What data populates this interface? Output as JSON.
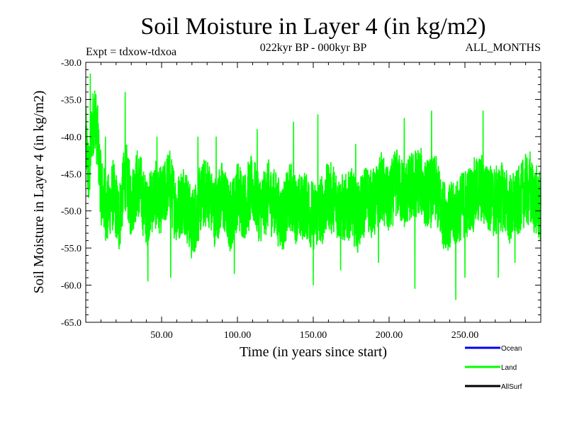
{
  "chart_data": {
    "type": "line",
    "title": "Soil Moisture in Layer 4 (in kg/m2)",
    "subtitle_left": "Expt = tdxow-tdxoa",
    "subtitle_center": "022kyr BP - 000kyr BP",
    "subtitle_right": "ALL_MONTHS",
    "xlabel": "Time (in years since start)",
    "ylabel": "Soil Moisture in Layer 4 (in kg/m2)",
    "xlim": [
      0,
      300
    ],
    "ylim": [
      -65,
      -30
    ],
    "x_ticks": [
      50,
      100,
      150,
      200,
      250
    ],
    "x_tick_labels": [
      "50.00",
      "100.00",
      "150.00",
      "200.00",
      "250.00"
    ],
    "y_ticks": [
      -30,
      -35,
      -40,
      -45,
      -50,
      -55,
      -60,
      -65
    ],
    "y_tick_labels": [
      "-30.0",
      "-35.0",
      "-40.0",
      "-45.0",
      "-50.0",
      "-55.0",
      "-60.0",
      "-65.0"
    ],
    "grid": false,
    "legend_position": "bottom-right",
    "legend": [
      {
        "name": "Ocean",
        "color": "#0000ff"
      },
      {
        "name": "Land",
        "color": "#00ff00"
      },
      {
        "name": "AllSurf",
        "color": "#000000"
      }
    ],
    "series": [
      {
        "name": "Land",
        "color": "#00ff00",
        "x_start": 0,
        "x_step": 0.0833,
        "anchors": [
          [
            0,
            -40
          ],
          [
            2,
            -46
          ],
          [
            4,
            -39
          ],
          [
            6,
            -37
          ],
          [
            8,
            -41
          ],
          [
            10,
            -47
          ],
          [
            14,
            -50
          ],
          [
            18,
            -48
          ],
          [
            22,
            -51
          ],
          [
            26,
            -45
          ],
          [
            30,
            -49
          ],
          [
            34,
            -46
          ],
          [
            40,
            -50
          ],
          [
            45,
            -48
          ],
          [
            50,
            -49
          ],
          [
            55,
            -46
          ],
          [
            60,
            -50
          ],
          [
            65,
            -48
          ],
          [
            70,
            -52
          ],
          [
            75,
            -49
          ],
          [
            80,
            -47
          ],
          [
            85,
            -50
          ],
          [
            90,
            -48
          ],
          [
            95,
            -51
          ],
          [
            100,
            -48
          ],
          [
            105,
            -49
          ],
          [
            110,
            -47
          ],
          [
            115,
            -50
          ],
          [
            120,
            -48
          ],
          [
            125,
            -49
          ],
          [
            130,
            -51
          ],
          [
            135,
            -48
          ],
          [
            140,
            -50
          ],
          [
            145,
            -49
          ],
          [
            150,
            -51
          ],
          [
            155,
            -50
          ],
          [
            160,
            -48
          ],
          [
            165,
            -49
          ],
          [
            170,
            -50
          ],
          [
            175,
            -49
          ],
          [
            180,
            -51
          ],
          [
            185,
            -48
          ],
          [
            190,
            -49
          ],
          [
            195,
            -47
          ],
          [
            200,
            -49
          ],
          [
            205,
            -46
          ],
          [
            210,
            -48
          ],
          [
            215,
            -47
          ],
          [
            220,
            -46
          ],
          [
            225,
            -48
          ],
          [
            230,
            -47
          ],
          [
            235,
            -50
          ],
          [
            240,
            -51
          ],
          [
            245,
            -50
          ],
          [
            250,
            -49
          ],
          [
            255,
            -48
          ],
          [
            260,
            -47
          ],
          [
            265,
            -48
          ],
          [
            270,
            -49
          ],
          [
            275,
            -48
          ],
          [
            280,
            -50
          ],
          [
            285,
            -49
          ],
          [
            290,
            -47
          ],
          [
            295,
            -48
          ],
          [
            300,
            -50
          ]
        ],
        "spikes": [
          [
            3,
            -31.5
          ],
          [
            7,
            -36
          ],
          [
            13,
            -40
          ],
          [
            26,
            -34
          ],
          [
            41,
            -59.5
          ],
          [
            47,
            -40
          ],
          [
            56,
            -59
          ],
          [
            74,
            -40
          ],
          [
            86,
            -40
          ],
          [
            98,
            -58.5
          ],
          [
            113,
            -39
          ],
          [
            137,
            -38
          ],
          [
            150,
            -60
          ],
          [
            153,
            -37
          ],
          [
            168,
            -58
          ],
          [
            178,
            -41
          ],
          [
            193,
            -57
          ],
          [
            210,
            -37.5
          ],
          [
            217,
            -60.5
          ],
          [
            228,
            -36.5
          ],
          [
            244,
            -62
          ],
          [
            250,
            -59
          ],
          [
            262,
            -36.5
          ],
          [
            272,
            -59
          ],
          [
            283,
            -57
          ],
          [
            293,
            -42
          ]
        ],
        "noise_amplitude": 5.5,
        "min": -62,
        "max": -31.5
      }
    ]
  }
}
